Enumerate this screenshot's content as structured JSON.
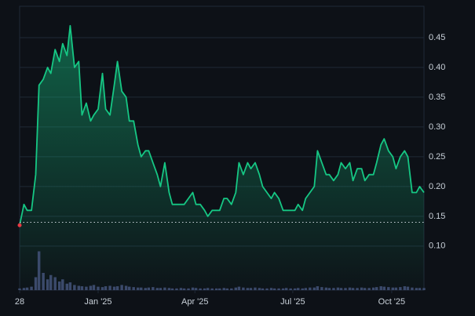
{
  "chart_data": {
    "type": "area",
    "x": [
      0,
      4,
      7,
      11,
      15,
      18,
      22,
      26,
      29,
      33,
      37,
      40,
      44,
      47,
      51,
      55,
      58,
      62,
      66,
      69,
      73,
      77,
      80,
      84,
      88,
      91,
      95,
      99,
      102,
      106,
      110,
      113,
      117,
      120,
      124,
      128,
      131,
      135,
      139,
      142,
      146,
      150,
      153,
      157,
      161,
      164,
      168,
      172,
      175,
      179,
      183,
      186,
      190,
      193,
      197,
      201,
      204,
      208,
      212,
      215,
      219,
      223,
      226,
      230,
      234,
      237,
      241,
      245,
      248,
      252,
      256,
      259,
      263,
      266,
      270,
      274,
      277,
      281,
      285,
      288,
      292,
      296,
      299,
      303,
      307,
      310,
      314,
      318,
      321,
      325,
      329,
      332,
      336,
      339,
      343,
      347,
      350,
      354,
      358,
      361,
      365,
      369,
      372,
      376
    ],
    "series": [
      {
        "name": "Price",
        "color": "#16c784",
        "values": [
          0.135,
          0.17,
          0.16,
          0.16,
          0.22,
          0.37,
          0.38,
          0.4,
          0.39,
          0.43,
          0.41,
          0.44,
          0.42,
          0.47,
          0.4,
          0.41,
          0.32,
          0.34,
          0.31,
          0.32,
          0.33,
          0.39,
          0.33,
          0.32,
          0.37,
          0.41,
          0.36,
          0.35,
          0.31,
          0.31,
          0.27,
          0.25,
          0.26,
          0.26,
          0.24,
          0.22,
          0.2,
          0.24,
          0.19,
          0.17,
          0.17,
          0.17,
          0.17,
          0.18,
          0.19,
          0.17,
          0.17,
          0.16,
          0.15,
          0.16,
          0.16,
          0.16,
          0.18,
          0.18,
          0.17,
          0.19,
          0.24,
          0.22,
          0.24,
          0.23,
          0.24,
          0.22,
          0.2,
          0.19,
          0.18,
          0.19,
          0.18,
          0.16,
          0.16,
          0.16,
          0.16,
          0.17,
          0.16,
          0.18,
          0.19,
          0.2,
          0.26,
          0.24,
          0.22,
          0.22,
          0.21,
          0.22,
          0.24,
          0.23,
          0.24,
          0.21,
          0.23,
          0.23,
          0.21,
          0.22,
          0.22,
          0.24,
          0.27,
          0.28,
          0.26,
          0.25,
          0.23,
          0.25,
          0.26,
          0.25,
          0.19,
          0.19,
          0.2,
          0.19
        ]
      },
      {
        "name": "Volume",
        "color": "#3b4a6b",
        "axis": "y2",
        "values": [
          4,
          5,
          6,
          8,
          30,
          90,
          40,
          25,
          35,
          30,
          20,
          25,
          15,
          18,
          12,
          10,
          9,
          8,
          10,
          12,
          8,
          7,
          9,
          10,
          8,
          9,
          12,
          10,
          8,
          7,
          6,
          6,
          5,
          6,
          7,
          5,
          5,
          6,
          5,
          4,
          4,
          5,
          4,
          4,
          6,
          5,
          4,
          4,
          5,
          4,
          4,
          4,
          5,
          4,
          4,
          6,
          8,
          6,
          5,
          5,
          6,
          5,
          4,
          4,
          5,
          4,
          4,
          4,
          5,
          4,
          4,
          5,
          4,
          5,
          6,
          6,
          9,
          7,
          6,
          5,
          5,
          6,
          5,
          5,
          6,
          5,
          5,
          6,
          5,
          5,
          6,
          7,
          9,
          8,
          7,
          6,
          6,
          7,
          9,
          8,
          6,
          5,
          5,
          5
        ]
      }
    ],
    "xlim": [
      0,
      376
    ],
    "xticks": [
      {
        "value": 0,
        "label": "28"
      },
      {
        "value": 73,
        "label": "Jan '25"
      },
      {
        "value": 163,
        "label": "Apr '25"
      },
      {
        "value": 254,
        "label": "Jul '25"
      },
      {
        "value": 346,
        "label": "Oct '25"
      }
    ],
    "ylim": [
      0.03,
      0.5
    ],
    "yticks": [
      {
        "value": 0.1,
        "label": "0.10"
      },
      0.15,
      {
        "value": 0.2,
        "label": "0.20"
      },
      0.25,
      {
        "value": 0.3,
        "label": "0.30"
      },
      0.35,
      {
        "value": 0.4,
        "label": "0.40"
      },
      0.45
    ],
    "y2lim": [
      0,
      100
    ],
    "baseline": 0.14,
    "grid": true
  }
}
